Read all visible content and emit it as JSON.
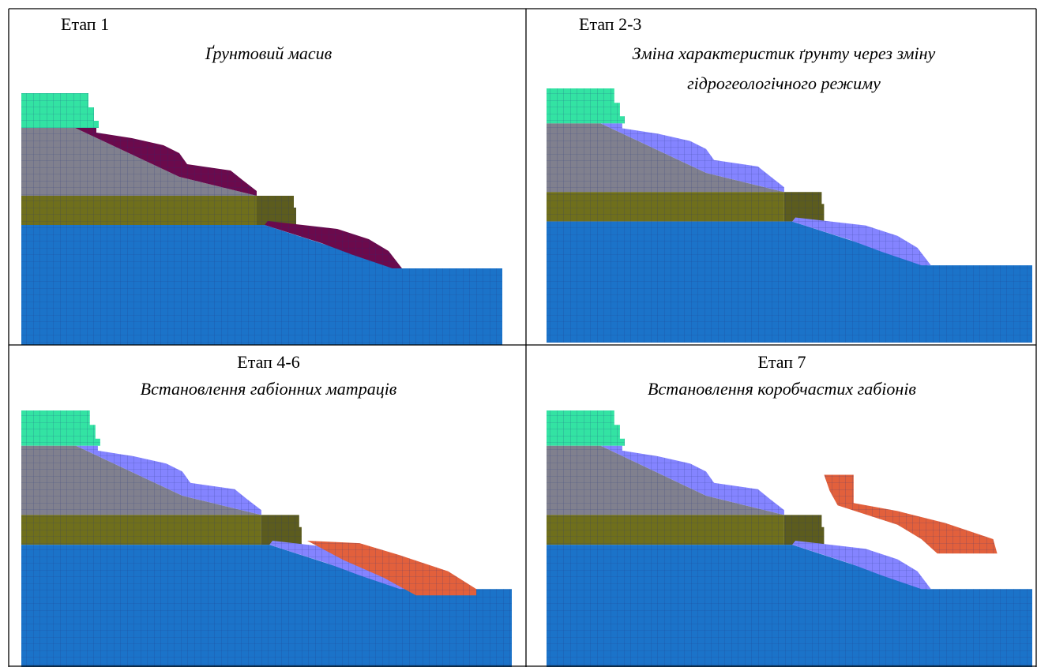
{
  "panels": [
    {
      "stage": "Етап 1",
      "caption": "Ґрунтовий масив"
    },
    {
      "stage": "Етап 2-3",
      "caption": "Зміна характеристик ґрунту через зміну гідрогеологічного режиму"
    },
    {
      "stage": "Етап 4-6",
      "caption": "Встановлення габіонних матраців"
    },
    {
      "stage": "Етап 7",
      "caption": "Встановлення коробчастих габіонів"
    }
  ]
}
